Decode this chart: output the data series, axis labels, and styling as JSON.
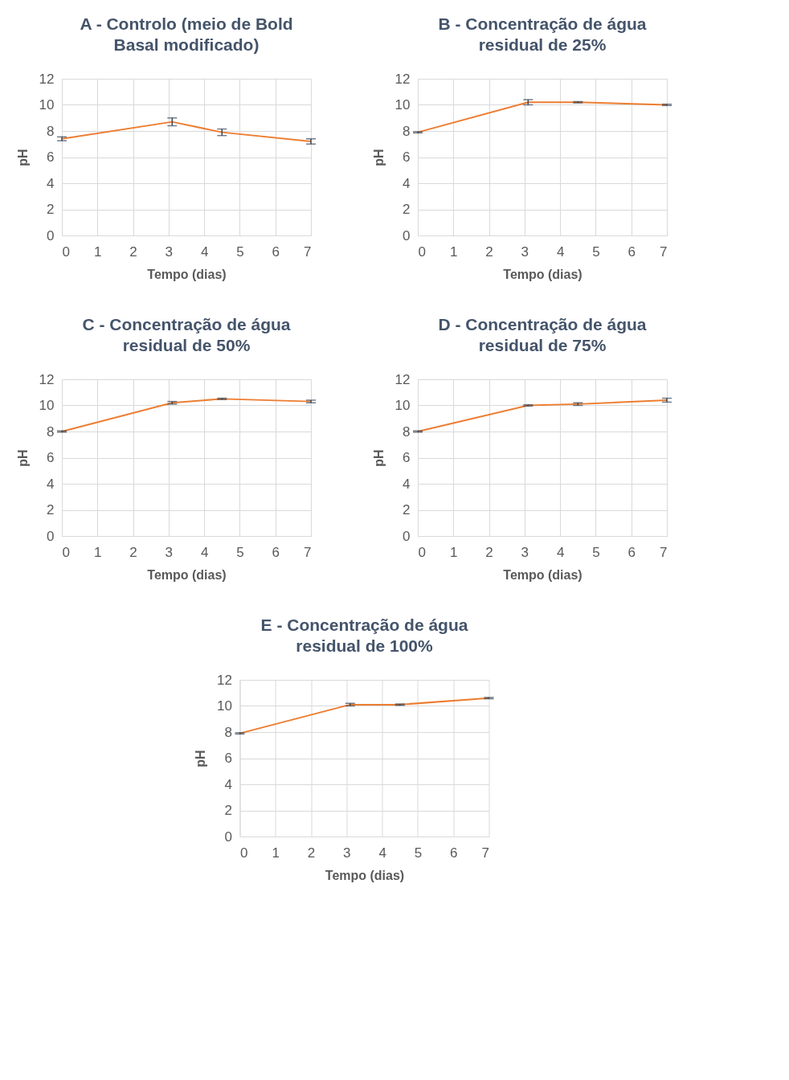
{
  "chart_data": [
    {
      "type": "line",
      "title": "A - Controlo (meio de Bold Basal modificado)",
      "xlabel": "Tempo (dias)",
      "ylabel": "pH",
      "x": [
        0,
        3.1,
        4.5,
        7
      ],
      "xlim": [
        0,
        7
      ],
      "xticks": [
        0,
        1,
        2,
        3,
        4,
        5,
        6,
        7
      ],
      "ylim": [
        0,
        12
      ],
      "yticks": [
        0,
        2,
        4,
        6,
        8,
        10,
        12
      ],
      "grid": true,
      "series": [
        {
          "color": "#ed7d31",
          "values": [
            7.4,
            8.7,
            7.9,
            7.2
          ],
          "errors": [
            0.15,
            0.3,
            0.25,
            0.2
          ]
        }
      ]
    },
    {
      "type": "line",
      "title": "B - Concentração de água residual de 25%",
      "xlabel": "Tempo (dias)",
      "ylabel": "pH",
      "x": [
        0,
        3.1,
        4.5,
        7
      ],
      "xlim": [
        0,
        7
      ],
      "xticks": [
        0,
        1,
        2,
        3,
        4,
        5,
        6,
        7
      ],
      "ylim": [
        0,
        12
      ],
      "yticks": [
        0,
        2,
        4,
        6,
        8,
        10,
        12
      ],
      "grid": true,
      "series": [
        {
          "color": "#ed7d31",
          "values": [
            7.9,
            10.2,
            10.2,
            10.0
          ],
          "errors": [
            0.05,
            0.2,
            0.05,
            0.05
          ]
        }
      ]
    },
    {
      "type": "line",
      "title": "C - Concentração de água residual de 50%",
      "xlabel": "Tempo (dias)",
      "ylabel": "pH",
      "x": [
        0,
        3.1,
        4.5,
        7
      ],
      "xlim": [
        0,
        7
      ],
      "xticks": [
        0,
        1,
        2,
        3,
        4,
        5,
        6,
        7
      ],
      "ylim": [
        0,
        12
      ],
      "yticks": [
        0,
        2,
        4,
        6,
        8,
        10,
        12
      ],
      "grid": true,
      "series": [
        {
          "color": "#ed7d31",
          "values": [
            8.0,
            10.2,
            10.5,
            10.3
          ],
          "errors": [
            0.05,
            0.1,
            0.05,
            0.1
          ]
        }
      ]
    },
    {
      "type": "line",
      "title": "D - Concentração de água residual de 75%",
      "xlabel": "Tempo (dias)",
      "ylabel": "pH",
      "x": [
        0,
        3.1,
        4.5,
        7
      ],
      "xlim": [
        0,
        7
      ],
      "xticks": [
        0,
        1,
        2,
        3,
        4,
        5,
        6,
        7
      ],
      "ylim": [
        0,
        12
      ],
      "yticks": [
        0,
        2,
        4,
        6,
        8,
        10,
        12
      ],
      "grid": true,
      "series": [
        {
          "color": "#ed7d31",
          "values": [
            8.0,
            10.0,
            10.1,
            10.4
          ],
          "errors": [
            0.05,
            0.05,
            0.1,
            0.15
          ]
        }
      ]
    },
    {
      "type": "line",
      "title": "E - Concentração de água residual de 100%",
      "xlabel": "Tempo (dias)",
      "ylabel": "pH",
      "x": [
        0,
        3.1,
        4.5,
        7
      ],
      "xlim": [
        0,
        7
      ],
      "xticks": [
        0,
        1,
        2,
        3,
        4,
        5,
        6,
        7
      ],
      "ylim": [
        0,
        12
      ],
      "yticks": [
        0,
        2,
        4,
        6,
        8,
        10,
        12
      ],
      "grid": true,
      "series": [
        {
          "color": "#ed7d31",
          "values": [
            7.9,
            10.1,
            10.1,
            10.6
          ],
          "errors": [
            0.05,
            0.1,
            0.05,
            0.05
          ]
        }
      ]
    }
  ]
}
